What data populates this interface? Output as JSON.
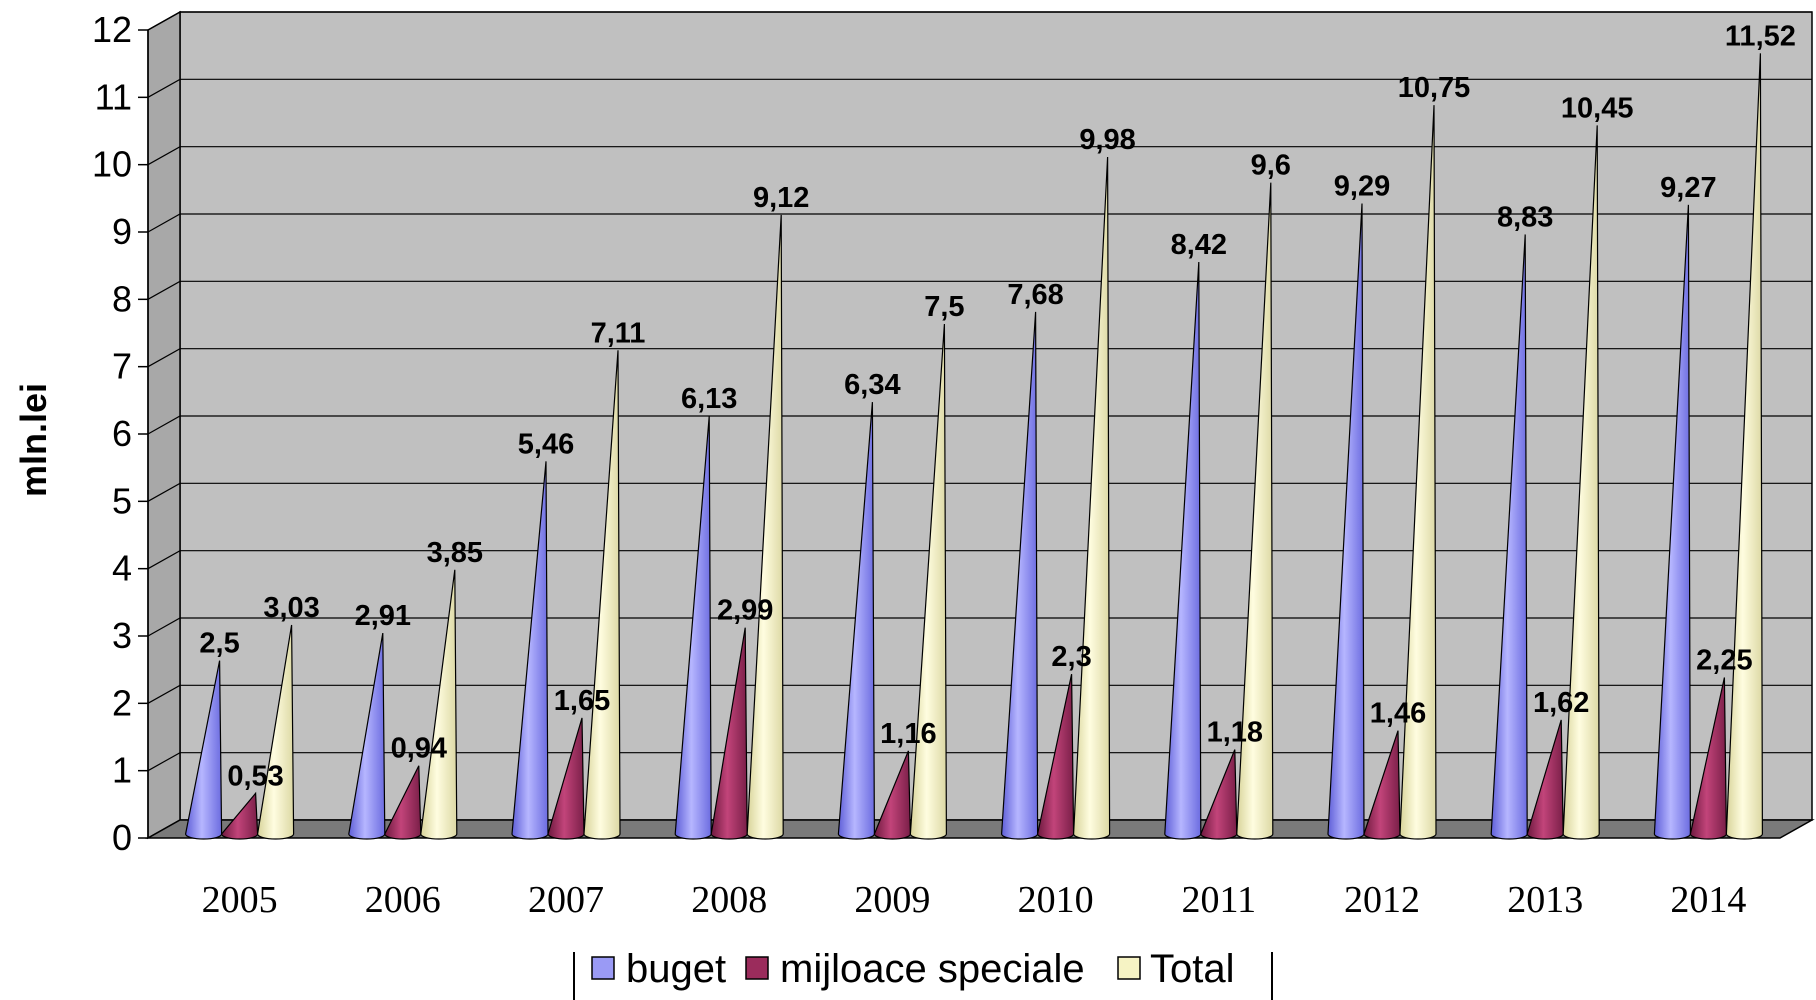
{
  "chart_data": {
    "type": "bar",
    "style": "3d-cone",
    "ylabel": "mln.lei",
    "xlabel": "",
    "ylim": [
      0,
      12
    ],
    "yticks": [
      0,
      1,
      2,
      3,
      4,
      5,
      6,
      7,
      8,
      9,
      10,
      11,
      12
    ],
    "grid": true,
    "legend_position": "bottom",
    "categories": [
      "2005",
      "2006",
      "2007",
      "2008",
      "2009",
      "2010",
      "2011",
      "2012",
      "2013",
      "2014"
    ],
    "series": [
      {
        "name": "buget",
        "color": "#9a9af5",
        "values": [
          2.5,
          2.91,
          5.46,
          6.13,
          6.34,
          7.68,
          8.42,
          9.29,
          8.83,
          9.27
        ],
        "labels": [
          "2,5",
          "2,91",
          "5,46",
          "6,13",
          "6,34",
          "7,68",
          "8,42",
          "9,29",
          "8,83",
          "9,27"
        ]
      },
      {
        "name": "mijloace speciale",
        "color": "#9b2c5c",
        "values": [
          0.53,
          0.94,
          1.65,
          2.99,
          1.16,
          2.3,
          1.18,
          1.46,
          1.62,
          2.25
        ],
        "labels": [
          "0,53",
          "0,94",
          "1,65",
          "2,99",
          "1,16",
          "2,3",
          "1,18",
          "1,46",
          "1,62",
          "2,25"
        ]
      },
      {
        "name": "Total",
        "color": "#f6f3c4",
        "values": [
          3.03,
          3.85,
          7.11,
          9.12,
          7.5,
          9.98,
          9.6,
          10.75,
          10.45,
          11.52
        ],
        "labels": [
          "3,03",
          "3,85",
          "7,11",
          "9,12",
          "7,5",
          "9,98",
          "9,6",
          "10,75",
          "10,45",
          "11,52"
        ]
      }
    ]
  }
}
